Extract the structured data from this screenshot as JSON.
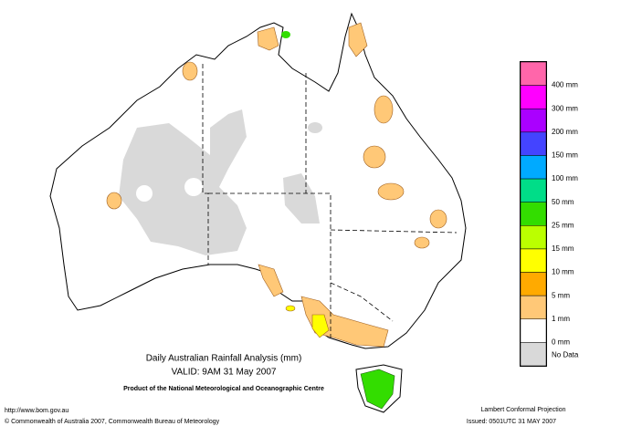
{
  "map": {
    "title": "Daily Australian Rainfall Analysis (mm)",
    "valid": "VALID: 9AM 31 May 2007",
    "product": "Product of the National Meteorological and Oceanographic Centre",
    "url": "http://www.bom.gov.au",
    "copyright": "© Commonwealth of Australia 2007, Commonwealth Bureau of Meteorology",
    "projection": "Lambert Conformal Projection",
    "issued": "Issued: 0501UTC 31 MAY 2007"
  },
  "legend": {
    "colors": [
      "#ff66aa",
      "#ff00ff",
      "#aa00ff",
      "#4444ff",
      "#00aaff",
      "#00dd88",
      "#33dd00",
      "#bbff00",
      "#ffff00",
      "#ffaa00",
      "#ffc877",
      "#ffffff",
      "#d9d9d9"
    ],
    "labels": [
      "400 mm",
      "300 mm",
      "200 mm",
      "150 mm",
      "100 mm",
      "50 mm",
      "25 mm",
      "15 mm",
      "10 mm",
      "5 mm",
      "1 mm",
      "0 mm",
      "No Data"
    ]
  }
}
